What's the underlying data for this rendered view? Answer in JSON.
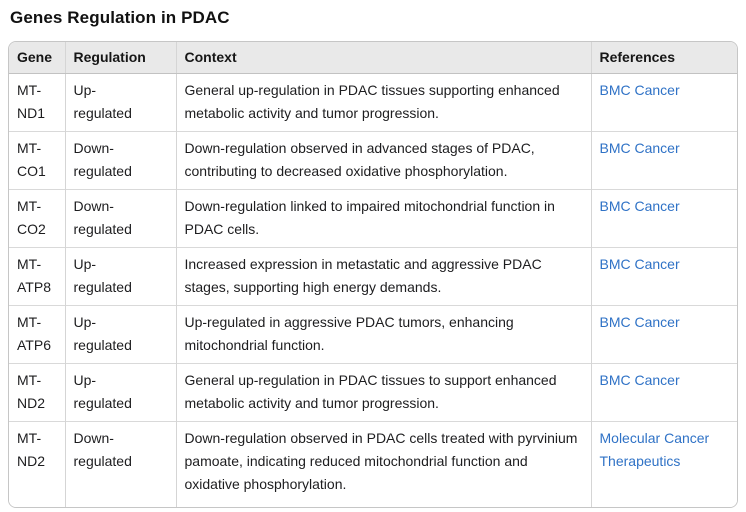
{
  "page": {
    "title": "Genes Regulation in PDAC"
  },
  "colors": {
    "link_blue": "#2f72c6",
    "header_background": "#e9e9e9",
    "outer_border": "#c6c6c6",
    "row_divider": "#d9d9d9",
    "text": "#1d1d1f"
  },
  "table": {
    "columns": [
      {
        "id": "gene",
        "label": "Gene"
      },
      {
        "id": "regulation",
        "label": "Regulation"
      },
      {
        "id": "context",
        "label": "Context"
      },
      {
        "id": "references",
        "label": "References"
      }
    ],
    "rows": [
      {
        "gene": "MT-ND1",
        "regulation": "Up-regulated",
        "context": "General up-regulation in PDAC tissues supporting enhanced metabolic activity and tumor progression.",
        "reference": "BMC Cancer"
      },
      {
        "gene": "MT-CO1",
        "regulation": "Down-regulated",
        "context": "Down-regulation observed in advanced stages of PDAC, contributing to decreased oxidative phosphorylation.",
        "reference": "BMC Cancer"
      },
      {
        "gene": "MT-CO2",
        "regulation": "Down-regulated",
        "context": "Down-regulation linked to impaired mitochondrial function in PDAC cells.",
        "reference": "BMC Cancer"
      },
      {
        "gene": "MT-ATP8",
        "regulation": "Up-regulated",
        "context": "Increased expression in metastatic and aggressive PDAC stages, supporting high energy demands.",
        "reference": "BMC Cancer"
      },
      {
        "gene": "MT-ATP6",
        "regulation": "Up-regulated",
        "context": "Up-regulated in aggressive PDAC tumors, enhancing mitochondrial function.",
        "reference": "BMC Cancer"
      },
      {
        "gene": "MT-ND2",
        "regulation": "Up-regulated",
        "context": "General up-regulation in PDAC tissues to support enhanced metabolic activity and tumor progression.",
        "reference": "BMC Cancer"
      },
      {
        "gene": "MT-ND2",
        "regulation": "Down-regulated",
        "context": "Down-regulation observed in PDAC cells treated with pyrvinium pamoate, indicating reduced mitochondrial function and oxidative phosphorylation.",
        "reference": "Molecular Cancer Therapeutics"
      }
    ]
  }
}
